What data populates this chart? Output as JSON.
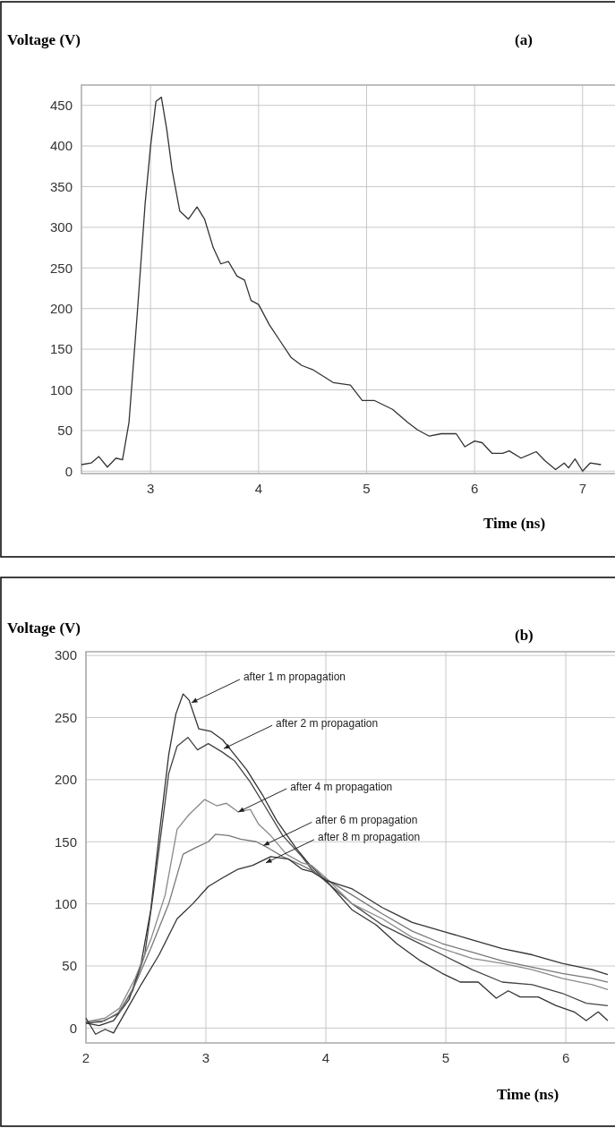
{
  "chart_data": [
    {
      "type": "line",
      "title": "(a)",
      "ylabel": "Voltage (V)",
      "xlabel": "Time (ns)",
      "xlim": [
        2.36,
        7.3
      ],
      "ylim": [
        -3,
        475
      ],
      "xticks": [
        3,
        4,
        5,
        6,
        7
      ],
      "yticks": [
        0,
        50,
        100,
        150,
        200,
        250,
        300,
        350,
        400,
        450
      ],
      "grid": true,
      "marker": "none",
      "line_style": "solid",
      "series": [
        {
          "color": "#333333",
          "x": [
            2.36,
            2.45,
            2.52,
            2.6,
            2.68,
            2.74,
            2.8,
            2.88,
            2.95,
            3.0,
            3.05,
            3.1,
            3.15,
            3.2,
            3.27,
            3.35,
            3.43,
            3.5,
            3.58,
            3.65,
            3.72,
            3.8,
            3.87,
            3.93,
            4.0,
            4.1,
            4.2,
            4.3,
            4.4,
            4.5,
            4.69,
            4.85,
            4.96,
            5.07,
            5.24,
            5.38,
            5.47,
            5.58,
            5.69,
            5.83,
            5.91,
            6.0,
            6.07,
            6.16,
            6.26,
            6.32,
            6.43,
            6.57,
            6.65,
            6.75,
            6.83,
            6.87,
            6.93,
            7.0,
            7.07,
            7.17
          ],
          "values": [
            8,
            10,
            18,
            5,
            16,
            14,
            60,
            200,
            330,
            400,
            455,
            460,
            420,
            370,
            320,
            310,
            325,
            310,
            275,
            255,
            258,
            240,
            235,
            210,
            205,
            180,
            160,
            140,
            130,
            125,
            109,
            106,
            87,
            87,
            76,
            60,
            51,
            43,
            46,
            46,
            30,
            37,
            35,
            22,
            22,
            25,
            16,
            24,
            13,
            2,
            10,
            4,
            15,
            0,
            10,
            8
          ]
        }
      ]
    },
    {
      "type": "line",
      "title": "(b)",
      "ylabel": "Voltage (V)",
      "xlabel": "Time (ns)",
      "xlim": [
        2,
        6.41
      ],
      "ylim": [
        -12,
        303
      ],
      "xticks": [
        2,
        3,
        4,
        5,
        6
      ],
      "yticks": [
        0,
        50,
        100,
        150,
        200,
        250,
        300
      ],
      "grid": true,
      "marker": "none",
      "line_style": "solid",
      "annotations": [
        {
          "text": "after 1 m propagation",
          "x": 2.88,
          "y": 262
        },
        {
          "text": "after 2 m propagation",
          "x": 3.15,
          "y": 225
        },
        {
          "text": "after 4 m propagation",
          "x": 3.27,
          "y": 174
        },
        {
          "text": "after 6 m propagation",
          "x": 3.48,
          "y": 147
        },
        {
          "text": "after 8 m propagation",
          "x": 3.5,
          "y": 133
        }
      ],
      "series": [
        {
          "color": "#333333",
          "x": [
            2.0,
            2.11,
            2.23,
            2.36,
            2.46,
            2.54,
            2.61,
            2.69,
            2.75,
            2.81,
            2.86,
            2.94,
            3.04,
            3.14,
            3.24,
            3.34,
            3.47,
            3.59,
            3.75,
            3.87,
            4.0,
            4.22,
            4.42,
            4.59,
            4.79,
            4.97,
            5.12,
            5.27,
            5.42,
            5.52,
            5.62,
            5.77,
            5.92,
            6.07,
            6.17,
            6.27,
            6.35
          ],
          "values": [
            4,
            2,
            6,
            23,
            52,
            95,
            155,
            220,
            253,
            269,
            264,
            241,
            239,
            232,
            220,
            208,
            188,
            167,
            145,
            131,
            119,
            95,
            83,
            68,
            54,
            44,
            37,
            37,
            24,
            30,
            25,
            25,
            18,
            13,
            6,
            13,
            6
          ]
        },
        {
          "color": "#444444",
          "x": [
            2.0,
            2.13,
            2.26,
            2.39,
            2.49,
            2.56,
            2.64,
            2.69,
            2.76,
            2.85,
            2.93,
            3.02,
            3.14,
            3.24,
            3.37,
            3.49,
            3.64,
            3.8,
            3.88,
            4.0,
            4.22,
            4.47,
            4.72,
            4.97,
            5.22,
            5.47,
            5.72,
            5.97,
            6.17,
            6.35
          ],
          "values": [
            4,
            5,
            11,
            30,
            59,
            107,
            167,
            205,
            227,
            234,
            224,
            229,
            222,
            215,
            198,
            179,
            155,
            138,
            128,
            118,
            100,
            83,
            71,
            59,
            47,
            37,
            35,
            28,
            20,
            18
          ]
        },
        {
          "color": "#8a8a8a",
          "x": [
            2.0,
            2.16,
            2.28,
            2.41,
            2.54,
            2.66,
            2.76,
            2.86,
            2.99,
            3.09,
            3.17,
            3.27,
            3.37,
            3.44,
            3.54,
            3.67,
            3.8,
            3.88,
            4.0,
            4.22,
            4.47,
            4.72,
            4.97,
            5.22,
            5.47,
            5.72,
            5.97,
            6.22,
            6.35
          ],
          "values": [
            5,
            8,
            16,
            40,
            71,
            107,
            160,
            172,
            184,
            179,
            181,
            174,
            176,
            164,
            155,
            140,
            133,
            131,
            121,
            100,
            88,
            73,
            64,
            56,
            52,
            47,
            40,
            35,
            31
          ]
        },
        {
          "color": "#777777",
          "x": [
            2.0,
            2.16,
            2.28,
            2.41,
            2.54,
            2.69,
            2.81,
            2.91,
            3.02,
            3.08,
            3.19,
            3.29,
            3.42,
            3.52,
            3.64,
            3.8,
            3.88,
            4.0,
            4.22,
            4.47,
            4.72,
            4.97,
            5.22,
            5.47,
            5.72,
            5.97,
            6.22,
            6.35
          ],
          "values": [
            5,
            6,
            13,
            35,
            64,
            100,
            140,
            145,
            150,
            156,
            155,
            152,
            150,
            145,
            138,
            131,
            127,
            120,
            107,
            92,
            78,
            68,
            61,
            54,
            49,
            44,
            40,
            37
          ]
        },
        {
          "color": "#333333",
          "x": [
            2.0,
            2.08,
            2.16,
            2.23,
            2.33,
            2.46,
            2.61,
            2.76,
            2.89,
            3.02,
            3.14,
            3.27,
            3.39,
            3.54,
            3.69,
            3.8,
            3.88,
            4.0,
            4.22,
            4.47,
            4.72,
            4.97,
            5.22,
            5.47,
            5.72,
            5.97,
            6.22,
            6.35
          ],
          "values": [
            8,
            -5,
            -1,
            -4,
            13,
            35,
            59,
            88,
            100,
            114,
            121,
            128,
            131,
            138,
            136,
            128,
            126,
            119,
            112,
            97,
            85,
            78,
            71,
            64,
            59,
            52,
            47,
            43
          ]
        }
      ]
    }
  ]
}
